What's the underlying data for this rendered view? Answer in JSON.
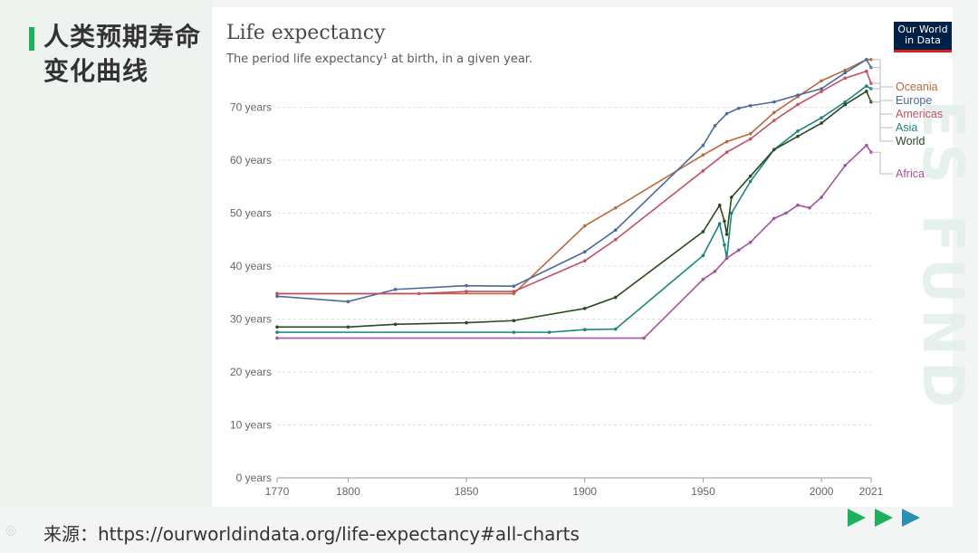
{
  "slide": {
    "title": "人类预期寿命变化曲线",
    "source": "来源：https://ourworldindata.org/life-expectancy#all-charts"
  },
  "logo": {
    "text": "Our World in Data"
  },
  "chart_data": {
    "type": "line",
    "title": "Life expectancy",
    "subtitle": "The period life expectancy¹ at birth, in a given year.",
    "xlabel": "",
    "ylabel": "",
    "xlim": [
      1770,
      2021
    ],
    "ylim": [
      0,
      80
    ],
    "x_ticks": [
      1770,
      1800,
      1850,
      1900,
      1950,
      2000,
      2021
    ],
    "y_ticks": [
      0,
      10,
      20,
      30,
      40,
      50,
      60,
      70
    ],
    "y_tick_labels": [
      "0 years",
      "10 years",
      "20 years",
      "30 years",
      "40 years",
      "50 years",
      "60 years",
      "70 years"
    ],
    "grid": true,
    "legend": "right",
    "series": [
      {
        "name": "Oceania",
        "color": "#a2559c",
        "x": [
          1770,
          1870,
          1900,
          1913,
          1950,
          1960,
          1970,
          1980,
          1990,
          2000,
          2010,
          2019,
          2021
        ],
        "y": [
          34.8,
          34.8,
          47.6,
          51.0,
          61.0,
          63.5,
          65.0,
          69.0,
          72.0,
          75.0,
          77.0,
          79.0,
          79.0
        ]
      },
      {
        "name": "Europe",
        "color": "#4c6a9c",
        "x": [
          1770,
          1800,
          1820,
          1850,
          1870,
          1900,
          1913,
          1950,
          1955,
          1960,
          1965,
          1970,
          1980,
          1990,
          2000,
          2010,
          2019,
          2021
        ],
        "y": [
          34.3,
          33.3,
          35.6,
          36.3,
          36.2,
          42.7,
          46.8,
          62.8,
          66.5,
          68.8,
          69.8,
          70.3,
          71.0,
          72.3,
          73.5,
          76.5,
          79.0,
          77.5
        ]
      },
      {
        "name": "Americas",
        "color": "#c15065",
        "x": [
          1770,
          1830,
          1850,
          1870,
          1900,
          1913,
          1950,
          1960,
          1970,
          1980,
          1990,
          2000,
          2010,
          2019,
          2021
        ],
        "y": [
          34.8,
          34.8,
          35.2,
          35.2,
          41.0,
          45.0,
          58.0,
          61.5,
          64.0,
          67.5,
          70.5,
          73.0,
          75.5,
          76.8,
          74.5
        ]
      },
      {
        "name": "Asia",
        "color": "#18867d",
        "x": [
          1770,
          1870,
          1885,
          1900,
          1913,
          1950,
          1957,
          1959,
          1960,
          1962,
          1970,
          1980,
          1990,
          2000,
          2010,
          2019,
          2021
        ],
        "y": [
          27.5,
          27.5,
          27.5,
          28.0,
          28.1,
          42.0,
          48.0,
          44.0,
          41.5,
          50.0,
          56.0,
          62.0,
          65.5,
          68.0,
          71.0,
          74.0,
          73.5
        ]
      },
      {
        "name": "World",
        "color": "#2c4a1f",
        "x": [
          1770,
          1800,
          1820,
          1850,
          1870,
          1900,
          1913,
          1950,
          1957,
          1959,
          1960,
          1962,
          1970,
          1980,
          1990,
          2000,
          2010,
          2019,
          2021
        ],
        "y": [
          28.5,
          28.5,
          29.0,
          29.3,
          29.7,
          32.0,
          34.1,
          46.5,
          51.5,
          48.5,
          46.0,
          53.0,
          57.0,
          62.0,
          64.5,
          67.0,
          70.5,
          73.0,
          71.0
        ]
      },
      {
        "name": "Africa",
        "color": "#a2559c",
        "x": [
          1770,
          1925,
          1950,
          1955,
          1960,
          1965,
          1970,
          1980,
          1985,
          1990,
          1995,
          2000,
          2010,
          2019,
          2021
        ],
        "y": [
          26.4,
          26.4,
          37.5,
          39.0,
          41.5,
          43.0,
          44.5,
          49.0,
          50.0,
          51.5,
          51.0,
          53.0,
          59.0,
          62.8,
          61.5
        ]
      }
    ]
  }
}
